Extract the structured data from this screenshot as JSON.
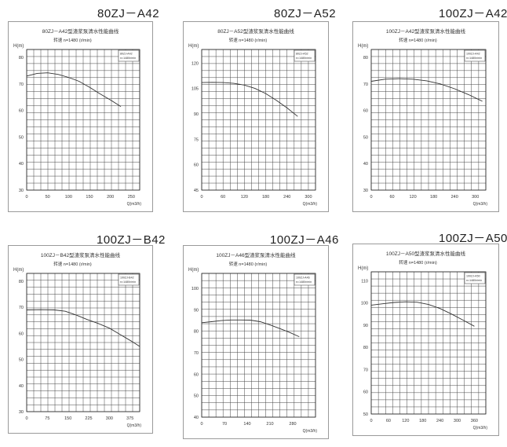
{
  "chart_data": [
    {
      "type": "line",
      "heading": "80ZJ－A42",
      "title": "80ZJ－A42型渣浆泵清水性能曲线",
      "subtitle": "转速 n=1480 (r/min)",
      "legend": [
        "80ZJ-A42",
        "n=1480r/min"
      ],
      "ylabel": "H(m)",
      "xlabel": "Q(m3/h)",
      "xlim": [
        0,
        270
      ],
      "ylim": [
        30,
        83
      ],
      "xticks": [
        0,
        50,
        100,
        150,
        200,
        250
      ],
      "yticks": [
        30,
        40,
        50,
        60,
        70,
        80
      ],
      "series": [
        {
          "x": [
            0,
            25,
            50,
            75,
            100,
            125,
            150,
            175,
            200,
            225
          ],
          "y": [
            73,
            74,
            74.2,
            73.6,
            72.5,
            71,
            68.8,
            66.3,
            64,
            61.5
          ]
        }
      ]
    },
    {
      "type": "line",
      "heading": "80ZJ－A52",
      "title": "80ZJ－A52型渣浆泵清水性能曲线",
      "subtitle": "转速 n=1480 (r/min)",
      "legend": [
        "80ZJ-A52",
        "n=1480r/min"
      ],
      "ylabel": "H(m)",
      "xlabel": "Q(m3/h)",
      "xlim": [
        0,
        320
      ],
      "ylim": [
        45,
        128
      ],
      "xticks": [
        0,
        60,
        120,
        180,
        240,
        300
      ],
      "yticks": [
        45,
        60,
        75,
        90,
        105,
        120
      ],
      "series": [
        {
          "x": [
            0,
            30,
            60,
            90,
            120,
            150,
            180,
            210,
            240,
            270
          ],
          "y": [
            108.5,
            108.6,
            108.5,
            108,
            107,
            105,
            102,
            98,
            93.5,
            88.5
          ]
        }
      ]
    },
    {
      "type": "line",
      "heading": "100ZJ－A42",
      "title": "100ZJ－A42型渣浆泵清水性能曲线",
      "subtitle": "转速 n=1480 (r/min)",
      "legend": [
        "100ZJ-A42",
        "n=1480r/min"
      ],
      "ylabel": "H(m)",
      "xlabel": "Q(m3/h)",
      "xlim": [
        0,
        330
      ],
      "ylim": [
        30,
        83
      ],
      "xticks": [
        0,
        60,
        120,
        180,
        240,
        300
      ],
      "yticks": [
        30,
        40,
        50,
        60,
        70,
        80
      ],
      "series": [
        {
          "x": [
            0,
            40,
            80,
            120,
            160,
            200,
            240,
            280,
            320
          ],
          "y": [
            71,
            71.8,
            72,
            71.8,
            71.2,
            70,
            68.2,
            66,
            63.5
          ]
        }
      ]
    },
    {
      "type": "line",
      "heading": "100ZJ－B42",
      "title": "100ZJ－B42型渣浆泵清水性能曲线",
      "subtitle": "转速 n=1480 (r/min)",
      "legend": [
        "100ZJ-B42",
        "n=1480r/min"
      ],
      "ylabel": "H(m)",
      "xlabel": "Q(m3/h)",
      "xlim": [
        0,
        410
      ],
      "ylim": [
        30,
        83
      ],
      "xticks": [
        0,
        75,
        150,
        225,
        300,
        375
      ],
      "yticks": [
        30,
        40,
        50,
        60,
        70,
        80
      ],
      "series": [
        {
          "x": [
            0,
            50,
            100,
            140,
            180,
            220,
            260,
            300,
            340,
            380,
            410
          ],
          "y": [
            69,
            69.1,
            69,
            68.5,
            67,
            65.3,
            63.8,
            62,
            59.5,
            57,
            55
          ]
        }
      ]
    },
    {
      "type": "line",
      "heading": "100ZJ－A46",
      "title": "100ZJ－A46型渣浆泵清水性能曲线",
      "subtitle": "转速 n=1480 (r/min)",
      "legend": [
        "100ZJ-A46",
        "n=1480r/min"
      ],
      "ylabel": "H(m)",
      "xlabel": "Q(m3/h)",
      "xlim": [
        0,
        350
      ],
      "ylim": [
        40,
        107
      ],
      "xticks": [
        0,
        70,
        140,
        210,
        280
      ],
      "yticks": [
        40,
        50,
        60,
        70,
        80,
        90,
        100
      ],
      "series": [
        {
          "x": [
            0,
            30,
            60,
            90,
            120,
            150,
            180,
            210,
            240,
            270,
            300
          ],
          "y": [
            84,
            84.5,
            85,
            85.3,
            85.3,
            85.2,
            84.5,
            83,
            81.3,
            79.5,
            77.5
          ]
        }
      ]
    },
    {
      "type": "line",
      "heading": "100ZJ－A50",
      "title": "100ZJ－A50型渣浆泵清水性能曲线",
      "subtitle": "转速 n=1480 (r/min)",
      "legend": [
        "100ZJ-A50",
        "n=1480r/min"
      ],
      "ylabel": "H(m)",
      "xlabel": "Q(m3/h)",
      "xlim": [
        0,
        400
      ],
      "ylim": [
        50,
        114
      ],
      "xticks": [
        0,
        60,
        120,
        180,
        240,
        300,
        360
      ],
      "yticks": [
        50,
        60,
        70,
        80,
        90,
        100,
        110
      ],
      "series": [
        {
          "x": [
            0,
            40,
            80,
            120,
            160,
            200,
            240,
            280,
            320,
            360
          ],
          "y": [
            99,
            99.6,
            100.2,
            100.5,
            100.3,
            99.3,
            97.5,
            95,
            92.3,
            89.5
          ]
        }
      ]
    }
  ]
}
